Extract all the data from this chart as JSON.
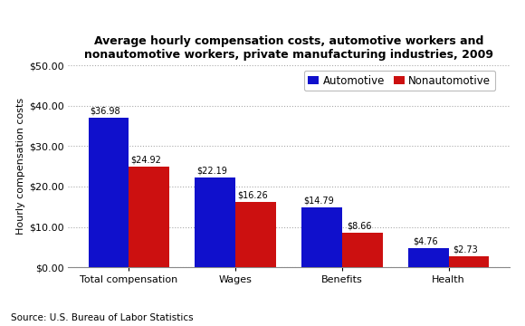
{
  "title": "Average hourly compensation costs, automotive workers and\nnonautomotive workers, private manufacturing industries, 2009",
  "categories": [
    "Total compensation",
    "Wages",
    "Benefits",
    "Health"
  ],
  "automotive": [
    36.98,
    22.19,
    14.79,
    4.76
  ],
  "nonautomotive": [
    24.92,
    16.26,
    8.66,
    2.73
  ],
  "auto_color": "#1010CC",
  "nonato_color": "#CC1010",
  "ylabel": "Hourly compensation costs",
  "ylim": [
    0,
    50
  ],
  "yticks": [
    0,
    10,
    20,
    30,
    40,
    50
  ],
  "legend_labels": [
    "Automotive",
    "Nonautomotive"
  ],
  "source": "Source: U.S. Bureau of Labor Statistics",
  "background_color": "#FFFFFF",
  "grid_color": "#AAAAAA",
  "bar_width": 0.38
}
